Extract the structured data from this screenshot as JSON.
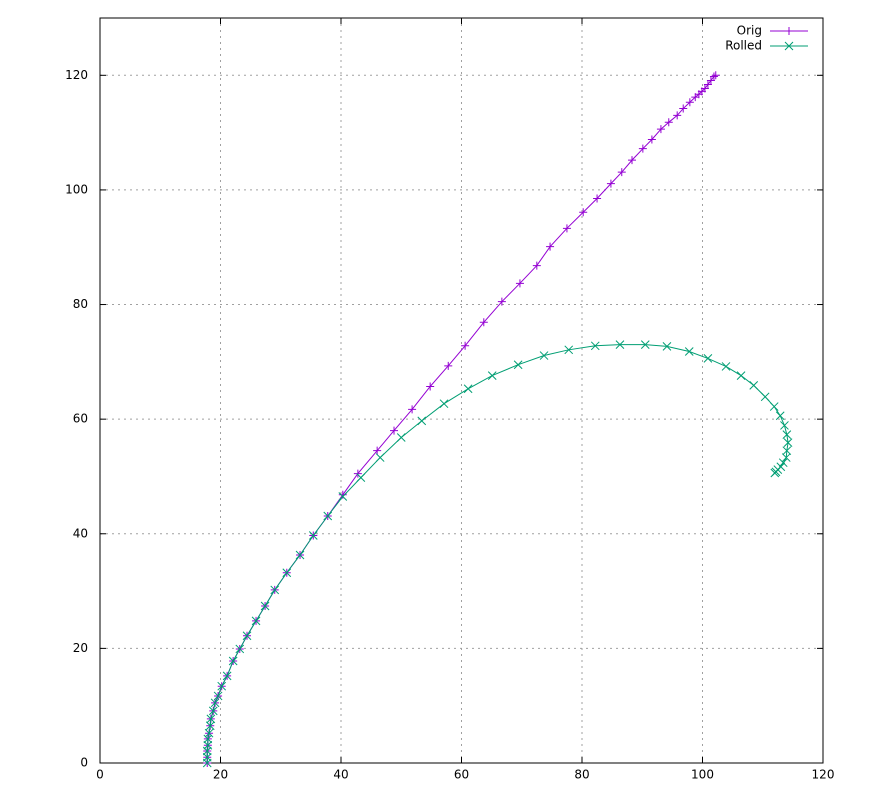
{
  "chart_data": {
    "type": "line",
    "xlim": [
      0,
      120
    ],
    "ylim": [
      0,
      130
    ],
    "xticks": [
      0,
      20,
      40,
      60,
      80,
      100,
      120
    ],
    "yticks": [
      0,
      20,
      40,
      60,
      80,
      100,
      120
    ],
    "grid": true,
    "legend": "upper right",
    "series": [
      {
        "name": "Orig",
        "color": "#9400d3",
        "marker": "plus",
        "x": [
          17.8,
          17.8,
          17.8,
          17.9,
          17.9,
          18.1,
          18.3,
          18.4,
          18.8,
          19.1,
          19.6,
          20.2,
          21.1,
          22.1,
          23.2,
          24.4,
          25.9,
          27.4,
          29.0,
          31.0,
          33.2,
          35.4,
          37.8,
          40.3,
          42.8,
          46.0,
          48.8,
          51.8,
          54.8,
          57.8,
          60.6,
          63.7,
          66.7,
          69.7,
          72.5,
          74.7,
          77.5,
          80.2,
          82.5,
          84.8,
          86.6,
          88.3,
          90.1,
          91.6,
          93.1,
          94.4,
          95.8,
          96.8,
          97.9,
          98.8,
          99.4,
          99.9,
          100.4,
          100.9,
          101.4,
          101.9,
          102.2
        ],
        "values": [
          0,
          1.0,
          2.1,
          3.1,
          4.2,
          5.2,
          6.5,
          7.7,
          9.1,
          10.5,
          11.7,
          13.4,
          15.2,
          17.8,
          19.9,
          22.2,
          24.8,
          27.4,
          30.2,
          33.2,
          36.3,
          39.7,
          43.1,
          46.8,
          50.5,
          54.5,
          58.0,
          61.7,
          65.7,
          69.3,
          72.8,
          76.9,
          80.5,
          83.7,
          86.8,
          90.1,
          93.3,
          96.1,
          98.5,
          101.1,
          103.1,
          105.2,
          107.2,
          108.8,
          110.6,
          111.8,
          113.0,
          114.2,
          115.3,
          116.2,
          116.7,
          117.2,
          117.7,
          118.4,
          119.1,
          119.8,
          120.0
        ]
      },
      {
        "name": "Rolled",
        "color": "#009e73",
        "marker": "cross",
        "x": [
          17.8,
          17.8,
          17.8,
          17.9,
          17.9,
          18.1,
          18.3,
          18.4,
          18.8,
          19.1,
          19.6,
          20.2,
          21.1,
          22.1,
          23.2,
          24.4,
          25.9,
          27.4,
          29.0,
          31.0,
          33.2,
          35.4,
          37.8,
          40.3,
          43.3,
          46.5,
          50.0,
          53.4,
          57.1,
          61.1,
          65.1,
          69.4,
          73.7,
          77.8,
          82.2,
          86.3,
          90.5,
          94.1,
          97.8,
          100.9,
          103.9,
          106.4,
          108.5,
          110.4,
          111.9,
          112.9,
          113.6,
          114.0,
          114.2,
          114.0,
          113.9,
          113.4,
          113.0,
          112.5,
          112.2,
          112.0
        ],
        "values": [
          0,
          1.0,
          2.1,
          3.1,
          4.2,
          5.2,
          6.5,
          7.7,
          9.1,
          10.5,
          11.7,
          13.4,
          15.2,
          17.8,
          19.9,
          22.2,
          24.8,
          27.4,
          30.2,
          33.2,
          36.3,
          39.7,
          43.1,
          46.5,
          49.8,
          53.3,
          56.8,
          59.7,
          62.7,
          65.3,
          67.6,
          69.5,
          71.1,
          72.1,
          72.8,
          73.0,
          73.0,
          72.7,
          71.8,
          70.6,
          69.2,
          67.6,
          65.9,
          63.9,
          62.2,
          60.6,
          58.9,
          57.3,
          55.9,
          54.5,
          53.3,
          52.4,
          51.7,
          51.2,
          50.8,
          50.6
        ]
      }
    ]
  }
}
